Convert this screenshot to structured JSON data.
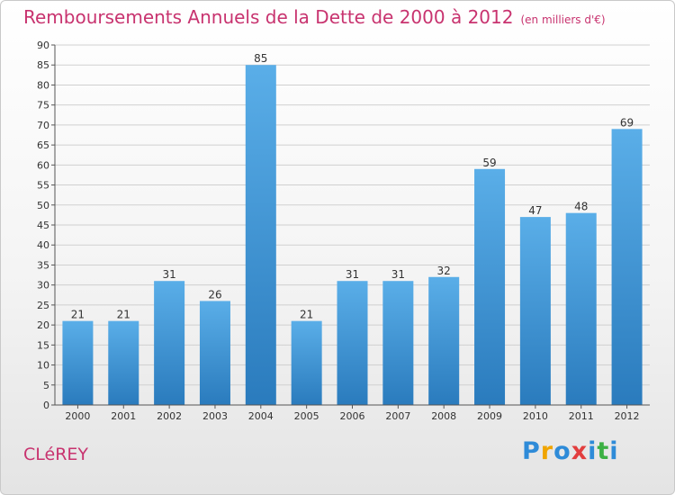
{
  "title": "Remboursements Annuels de la Dette de 2000 à 2012",
  "unit": "(en milliers d'€)",
  "commune": "CLéREY",
  "logo": {
    "text": "Proxiti",
    "letters": [
      {
        "char": "P",
        "color": "#2e8bd8"
      },
      {
        "char": "r",
        "color": "#f0a500"
      },
      {
        "char": "o",
        "color": "#2e8bd8"
      },
      {
        "char": "x",
        "color": "#e23e3e"
      },
      {
        "char": "i",
        "color": "#2e8bd8"
      },
      {
        "char": "t",
        "color": "#3cb043"
      },
      {
        "char": "i",
        "color": "#2e8bd8"
      }
    ]
  },
  "colors": {
    "title": "#c8336f",
    "bar_top": "#5aaee8",
    "bar_bottom": "#2a7bbd",
    "grid": "#d0d0d0"
  },
  "chart_data": {
    "type": "bar",
    "categories": [
      "2000",
      "2001",
      "2002",
      "2003",
      "2004",
      "2005",
      "2006",
      "2007",
      "2008",
      "2009",
      "2010",
      "2011",
      "2012"
    ],
    "values": [
      21,
      21,
      31,
      26,
      85,
      21,
      31,
      31,
      32,
      59,
      47,
      48,
      69
    ],
    "data_labels": [
      "21",
      "21",
      "31",
      "26",
      "85",
      "21",
      "31",
      "31",
      "32",
      "59",
      "47",
      "48",
      "69"
    ],
    "y_ticks": [
      0,
      5,
      10,
      15,
      20,
      25,
      30,
      35,
      40,
      45,
      50,
      55,
      60,
      65,
      70,
      75,
      80,
      85,
      90
    ],
    "ylim": [
      0,
      90
    ],
    "grid": true,
    "legend": "none"
  }
}
